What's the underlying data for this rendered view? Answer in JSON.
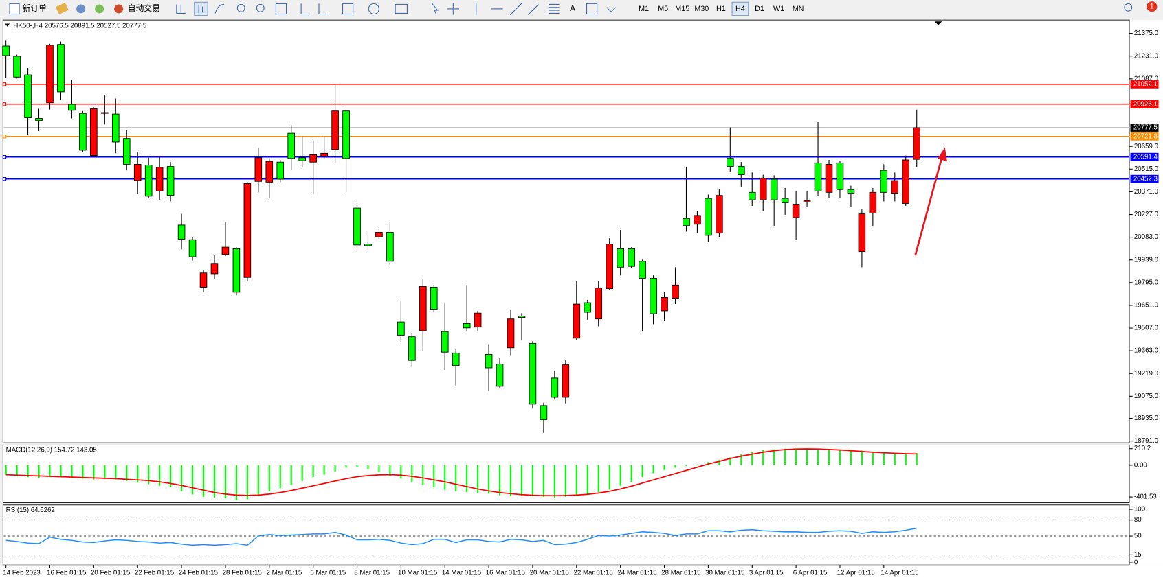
{
  "toolbar": {
    "new_order": "新订单",
    "auto_trading": "自动交易",
    "text_tool": "A",
    "timeframes": [
      "M1",
      "M5",
      "M15",
      "M30",
      "H1",
      "H4",
      "D1",
      "W1",
      "MN"
    ],
    "active_timeframe": 5,
    "notifications": "1"
  },
  "chart_data": [
    {
      "type": "candlestick",
      "title": "HK50-,H4  20576.5 20891.5 20527.5 20777.5",
      "bull_color": "#ff0000",
      "bear_color": "#00ff00",
      "price_line_color": "#a0a0a0",
      "categories": [
        "14 Feb 2023",
        null,
        null,
        null,
        "16 Feb 01:15",
        null,
        null,
        null,
        "20 Feb 01:15",
        null,
        null,
        null,
        "22 Feb 01:15",
        null,
        null,
        null,
        "24 Feb 01:15",
        null,
        null,
        null,
        "28 Feb 01:15",
        null,
        null,
        null,
        "2 Mar 01:15",
        null,
        null,
        null,
        "6 Mar 01:15",
        null,
        null,
        null,
        "8 Mar 01:15",
        null,
        null,
        null,
        "10 Mar 01:15",
        null,
        null,
        null,
        "14 Mar 01:15",
        null,
        null,
        null,
        "16 Mar 01:15",
        null,
        null,
        null,
        "20 Mar 01:15",
        null,
        null,
        null,
        "22 Mar 01:15",
        null,
        null,
        null,
        "24 Mar 01:15",
        null,
        null,
        null,
        "28 Mar 01:15",
        null,
        null,
        null,
        "30 Mar 01:15",
        null,
        null,
        null,
        "3 Apr 01:15",
        null,
        null,
        null,
        "6 Apr 01:15",
        null,
        null,
        null,
        "12 Apr 01:15",
        null,
        null,
        null,
        "14 Apr 01:15",
        null,
        null,
        null
      ],
      "open": [
        21295,
        21230,
        21112,
        20836,
        20935,
        21305,
        20925,
        20868,
        20601,
        20868,
        20864,
        20709,
        20442,
        20540,
        20376,
        20531,
        20160,
        20067,
        19766,
        19851,
        19973,
        20010,
        19828,
        20437,
        20432,
        20559,
        20742,
        20587,
        20559,
        20596,
        20639,
        20883,
        20268,
        20039,
        20085,
        20114,
        19546,
        19452,
        19490,
        19766,
        19485,
        19349,
        19536,
        19513,
        19340,
        19279,
        19382,
        19583,
        19410,
        19016,
        19190,
        19068,
        19443,
        19668,
        19565,
        19757,
        20010,
        20010,
        19930,
        19823,
        19616,
        19696,
        20202,
        20165,
        20329,
        20109,
        20583,
        20531,
        20367,
        20320,
        20451,
        20329,
        20207,
        20306,
        20554,
        20367,
        20554,
        20385,
        19992,
        20236,
        20507,
        20362,
        20297,
        20576.5
      ],
      "high": [
        21328,
        21240,
        21155,
        20897,
        21309,
        21323,
        21080,
        20883,
        20906,
        20986,
        20962,
        20761,
        20625,
        20587,
        20592,
        20559,
        20231,
        20085,
        19874,
        19968,
        20179,
        20020,
        20432,
        20648,
        20583,
        20573,
        20793,
        20718,
        20695,
        20718,
        21047,
        20892,
        20301,
        20114,
        20146,
        20179,
        19677,
        19476,
        19818,
        19780,
        19663,
        19372,
        19780,
        19616,
        19405,
        19316,
        19621,
        19602,
        19424,
        19035,
        19236,
        19302,
        19804,
        19686,
        19804,
        20076,
        20128,
        20020,
        19940,
        19841,
        19738,
        19893,
        20526,
        20249,
        20353,
        20385,
        20779,
        20559,
        20493,
        20479,
        20475,
        20395,
        20376,
        20376,
        20812,
        20573,
        20568,
        20409,
        20259,
        20395,
        20545,
        20493,
        20601,
        20891.5
      ],
      "low": [
        21094,
        21089,
        20733,
        20756,
        20892,
        20953,
        20836,
        20625,
        20592,
        20798,
        20615,
        20507,
        20357,
        20329,
        20320,
        20310,
        20006,
        19935,
        19734,
        19818,
        19963,
        19715,
        19804,
        20367,
        20329,
        20432,
        20507,
        20526,
        20357,
        20578,
        20554,
        20367,
        20001,
        19987,
        20071,
        19898,
        19419,
        19269,
        19363,
        19607,
        19241,
        19138,
        19490,
        19485,
        19110,
        19124,
        19335,
        19428,
        18997,
        18842,
        19054,
        19030,
        19429,
        19560,
        19518,
        19748,
        19841,
        19888,
        19490,
        19532,
        19555,
        19659,
        20118,
        20109,
        20053,
        20085,
        20498,
        20404,
        20282,
        20249,
        20156,
        20226,
        20067,
        20273,
        20343,
        20329,
        20329,
        20273,
        19893,
        20156,
        20310,
        20310,
        20282,
        20527.5
      ],
      "close": [
        21234,
        21098,
        20840,
        20822,
        21300,
        21004,
        20887,
        20634,
        20897,
        20873,
        20686,
        20545,
        20545,
        20343,
        20526,
        20348,
        20071,
        19959,
        19856,
        19917,
        20020,
        19734,
        20423,
        20587,
        20564,
        20451,
        20582,
        20568,
        20606,
        20615,
        20883,
        20582,
        20034,
        20029,
        20114,
        19930,
        19462,
        19302,
        19771,
        19626,
        19354,
        19269,
        19508,
        19602,
        19255,
        19138,
        19565,
        19574,
        19025,
        18927,
        19068,
        19274,
        19659,
        19607,
        19762,
        20039,
        19893,
        19898,
        19823,
        19598,
        19701,
        19780,
        20156,
        20221,
        20095,
        20348,
        20531,
        20479,
        20320,
        20456,
        20320,
        20301,
        20292,
        20315,
        20376,
        20545,
        20385,
        20362,
        20231,
        20367,
        20367,
        20442,
        20573,
        20777.5
      ],
      "ylim": [
        18780,
        21455
      ],
      "yticks": [
        {
          "value": 21375,
          "label": "21375.0"
        },
        {
          "value": 21231,
          "label": "21231.0"
        },
        {
          "value": 21087,
          "label": "21087.0"
        },
        {
          "value": 20659,
          "label": "20659.0"
        },
        {
          "value": 20515,
          "label": "20515.0"
        },
        {
          "value": 20371,
          "label": "20371.0"
        },
        {
          "value": 20227,
          "label": "20227.0"
        },
        {
          "value": 20083,
          "label": "20083.0"
        },
        {
          "value": 19939,
          "label": "19939.0"
        },
        {
          "value": 19795,
          "label": "19795.0"
        },
        {
          "value": 19651,
          "label": "19651.0"
        },
        {
          "value": 19507,
          "label": "19507.0"
        },
        {
          "value": 19363,
          "label": "19363.0"
        },
        {
          "value": 19219,
          "label": "19219.0"
        },
        {
          "value": 19075,
          "label": "19075.0"
        },
        {
          "value": 18935,
          "label": "18935.0"
        },
        {
          "value": 18791,
          "label": "18791.0"
        }
      ],
      "levels": [
        {
          "value": 21052.1,
          "color": "#ff0000"
        },
        {
          "value": 20926.1,
          "color": "#ff0000"
        },
        {
          "value": 20721.8,
          "color": "#ff8c00"
        },
        {
          "value": 20591.4,
          "color": "#0000ff"
        },
        {
          "value": 20452.3,
          "color": "#0000ff"
        }
      ]
    },
    {
      "type": "macd",
      "title": "MACD(12,26,9) 154.72 143.05",
      "ylim": [
        -475,
        256
      ],
      "yticks": [
        210.2,
        {
          "value": 0,
          "label": "0.00"
        },
        -401.53
      ],
      "series": [
        {
          "color": "#00ff00",
          "values": [
            -120,
            -130,
            -150,
            -160,
            -150,
            -140,
            -150,
            -170,
            -180,
            -175,
            -180,
            -200,
            -220,
            -240,
            -260,
            -280,
            -330,
            -370,
            -400,
            -410,
            -420,
            -440,
            -430,
            -380,
            -330,
            -290,
            -250,
            -200,
            -150,
            -120,
            -80,
            -30,
            -20,
            -50,
            -90,
            -130,
            -170,
            -210,
            -250,
            -280,
            -310,
            -330,
            -340,
            -350,
            -360,
            -380,
            -390,
            -390,
            -390,
            -400,
            -410,
            -400,
            -390,
            -370,
            -340,
            -310,
            -260,
            -210,
            -150,
            -100,
            -60,
            -30,
            -10,
            10,
            40,
            70,
            100,
            140,
            170,
            190,
            200,
            210,
            200,
            190,
            190,
            200,
            200,
            195,
            185,
            170,
            160,
            150,
            150,
            154.72
          ]
        },
        {
          "color": "#ff0000",
          "values": [
            -120,
            -125,
            -130,
            -135,
            -140,
            -145,
            -150,
            -155,
            -160,
            -165,
            -170,
            -178,
            -185,
            -195,
            -210,
            -230,
            -255,
            -285,
            -315,
            -345,
            -365,
            -378,
            -382,
            -378,
            -365,
            -345,
            -320,
            -290,
            -260,
            -230,
            -200,
            -170,
            -145,
            -130,
            -122,
            -120,
            -125,
            -140,
            -160,
            -185,
            -210,
            -240,
            -270,
            -300,
            -325,
            -345,
            -360,
            -372,
            -380,
            -384,
            -385,
            -383,
            -378,
            -368,
            -352,
            -330,
            -300,
            -265,
            -225,
            -185,
            -145,
            -105,
            -65,
            -25,
            15,
            50,
            85,
            115,
            140,
            165,
            185,
            198,
            205,
            207,
            205,
            200,
            193,
            185,
            175,
            165,
            158,
            152,
            147,
            143.05
          ]
        }
      ]
    },
    {
      "type": "line",
      "title": "RSI(15) 64.6262",
      "color": "#1e90ff",
      "ylim": [
        -4,
        108
      ],
      "yticks": [
        100,
        80,
        50,
        15,
        0
      ],
      "levels": [
        80,
        50,
        15
      ],
      "values": [
        42,
        40,
        37,
        36,
        48,
        44,
        42,
        39,
        38,
        41,
        43,
        42,
        40,
        39,
        37,
        38,
        35,
        33,
        34,
        33,
        34,
        36,
        33,
        50,
        53,
        51,
        52,
        53,
        54,
        54,
        57,
        52,
        43,
        43,
        44,
        42,
        37,
        34,
        36,
        44,
        44,
        38,
        43,
        43,
        40,
        39,
        44,
        43,
        40,
        42,
        34,
        35,
        38,
        44,
        51,
        50,
        52,
        55,
        58,
        57,
        55,
        51,
        54,
        54,
        60,
        60,
        58,
        61,
        62,
        60,
        59,
        58,
        58,
        57,
        57,
        59,
        60,
        59,
        55,
        58,
        57,
        58,
        61,
        64.6262
      ]
    }
  ]
}
